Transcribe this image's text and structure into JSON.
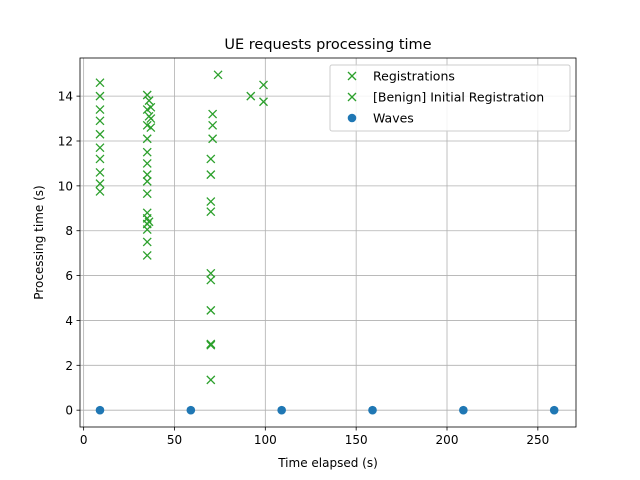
{
  "chart_data": {
    "type": "scatter",
    "title": "UE requests processing time",
    "xlabel": "Time elapsed (s)",
    "ylabel": "Processing time (s)",
    "xlim": [
      -2,
      271
    ],
    "ylim": [
      -0.75,
      15.7
    ],
    "xticks": [
      0,
      50,
      100,
      150,
      200,
      250
    ],
    "yticks": [
      0,
      2,
      4,
      6,
      8,
      10,
      12,
      14
    ],
    "xtick_labels": [
      "0",
      "50",
      "100",
      "150",
      "200",
      "250"
    ],
    "ytick_labels": [
      "0",
      "2",
      "4",
      "6",
      "8",
      "10",
      "12",
      "14"
    ],
    "grid": true,
    "legend_position": "top-right",
    "series": [
      {
        "name": "Registrations",
        "marker": "x",
        "color": "#2ca02c",
        "points": [
          [
            9,
            14.6
          ],
          [
            9,
            14.0
          ],
          [
            9,
            13.4
          ],
          [
            9,
            12.9
          ],
          [
            9,
            12.3
          ],
          [
            9,
            11.7
          ],
          [
            9,
            11.2
          ],
          [
            9,
            10.6
          ],
          [
            9,
            10.1
          ],
          [
            9,
            9.75
          ],
          [
            35,
            14.05
          ],
          [
            35,
            13.4
          ],
          [
            35,
            12.7
          ],
          [
            35,
            12.1
          ],
          [
            35,
            11.5
          ],
          [
            35,
            11.0
          ],
          [
            35,
            10.5
          ],
          [
            35,
            10.2
          ],
          [
            35,
            9.65
          ],
          [
            35,
            8.8
          ],
          [
            35,
            8.55
          ],
          [
            35,
            8.3
          ],
          [
            35,
            8.05
          ],
          [
            35,
            7.5
          ],
          [
            35,
            6.9
          ],
          [
            36,
            13.8
          ],
          [
            36,
            13.1
          ],
          [
            37,
            13.5
          ],
          [
            37,
            13.0
          ],
          [
            37,
            12.6
          ],
          [
            36,
            8.4
          ],
          [
            71,
            13.2
          ],
          [
            71,
            12.7
          ],
          [
            71,
            12.1
          ],
          [
            70,
            11.2
          ],
          [
            70,
            10.5
          ],
          [
            70,
            9.3
          ],
          [
            70,
            8.85
          ],
          [
            70,
            6.1
          ],
          [
            70,
            5.8
          ],
          [
            70,
            4.45
          ],
          [
            70,
            2.95
          ],
          [
            70,
            2.9
          ],
          [
            70,
            1.35
          ],
          [
            74,
            14.95
          ]
        ]
      },
      {
        "name": "[Benign] Initial Registration",
        "marker": "x",
        "color": "#2ca02c",
        "points": [
          [
            92,
            14.0
          ],
          [
            99,
            14.5
          ],
          [
            99,
            13.75
          ]
        ]
      },
      {
        "name": "Waves",
        "marker": "o",
        "color": "#1f77b4",
        "points": [
          [
            9,
            0
          ],
          [
            59,
            0
          ],
          [
            109,
            0
          ],
          [
            159,
            0
          ],
          [
            209,
            0
          ],
          [
            259,
            0
          ]
        ]
      }
    ]
  }
}
